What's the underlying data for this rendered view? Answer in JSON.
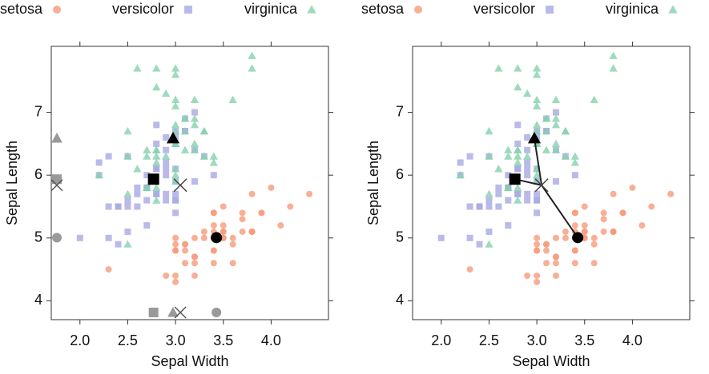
{
  "chart_data": [
    {
      "type": "scatter",
      "x_label": "Sepal Width",
      "y_label": "Sepal Length",
      "xlim": [
        1.7,
        4.6
      ],
      "ylim": [
        3.7,
        8.05
      ],
      "xticks": [
        {
          "value": 2.0,
          "label": "2.0"
        },
        {
          "value": 2.5,
          "label": "2.5"
        },
        {
          "value": 3.0,
          "label": "3.0"
        },
        {
          "value": 3.5,
          "label": "3.5"
        },
        {
          "value": 4.0,
          "label": "4.0"
        }
      ],
      "yticks": [
        4,
        5,
        6,
        7
      ],
      "marginal_projections": true,
      "connections": false,
      "query": [
        3.05,
        5.84
      ],
      "series": [
        {
          "name": "setosa",
          "color": "#f59b7c",
          "marker": "circle",
          "centroid": [
            3.428,
            5.006
          ],
          "x": [
            3.5,
            3.0,
            3.2,
            3.1,
            3.6,
            3.9,
            3.4,
            3.4,
            2.9,
            3.1,
            3.7,
            3.4,
            3.0,
            3.0,
            4.0,
            4.4,
            3.9,
            3.5,
            3.8,
            3.8,
            3.4,
            3.7,
            3.6,
            3.3,
            3.4,
            3.0,
            3.4,
            3.5,
            3.4,
            3.2,
            3.1,
            3.4,
            4.1,
            4.2,
            3.1,
            3.2,
            3.5,
            3.6,
            3.0,
            3.4,
            3.5,
            2.3,
            3.2,
            3.5,
            3.8,
            3.0,
            3.8,
            3.2,
            3.7,
            3.3
          ],
          "values": [
            5.1,
            4.9,
            4.7,
            4.6,
            5.0,
            5.4,
            4.6,
            5.0,
            4.4,
            4.9,
            5.4,
            4.8,
            4.8,
            4.3,
            5.8,
            5.7,
            5.4,
            5.1,
            5.7,
            5.1,
            5.4,
            5.1,
            4.6,
            5.1,
            4.8,
            5.0,
            5.0,
            5.2,
            5.2,
            4.7,
            4.8,
            5.4,
            5.2,
            5.5,
            4.9,
            5.0,
            5.5,
            4.9,
            4.4,
            5.1,
            5.0,
            4.5,
            4.4,
            5.0,
            5.1,
            4.8,
            5.1,
            4.6,
            5.3,
            5.0
          ]
        },
        {
          "name": "versicolor",
          "color": "#a9a9e3",
          "marker": "square",
          "centroid": [
            2.77,
            5.936
          ],
          "x": [
            3.2,
            3.2,
            3.1,
            2.3,
            2.8,
            2.8,
            3.3,
            2.4,
            2.9,
            2.7,
            2.0,
            3.0,
            2.2,
            2.9,
            2.9,
            3.1,
            3.0,
            2.7,
            2.2,
            2.5,
            3.2,
            2.8,
            2.5,
            2.8,
            2.9,
            3.0,
            2.8,
            3.0,
            2.9,
            2.6,
            2.4,
            2.4,
            2.7,
            2.7,
            3.0,
            3.4,
            3.1,
            2.3,
            3.0,
            2.5,
            2.6,
            3.0,
            2.6,
            2.3,
            2.7,
            3.0,
            2.9,
            2.9,
            2.5,
            2.8
          ],
          "values": [
            7.0,
            6.4,
            6.9,
            5.5,
            6.5,
            5.7,
            6.3,
            4.9,
            6.6,
            5.2,
            5.0,
            5.9,
            6.0,
            6.1,
            5.6,
            6.7,
            5.6,
            5.8,
            6.2,
            5.6,
            5.9,
            6.1,
            6.3,
            6.1,
            6.4,
            6.6,
            6.8,
            6.7,
            6.0,
            5.7,
            5.5,
            5.5,
            5.8,
            6.0,
            5.4,
            6.0,
            6.7,
            6.3,
            5.6,
            5.5,
            5.5,
            6.1,
            5.8,
            5.0,
            5.6,
            5.7,
            5.7,
            6.2,
            5.1,
            5.7
          ]
        },
        {
          "name": "virginica",
          "color": "#86d1ae",
          "marker": "triangle",
          "centroid": [
            2.974,
            6.588
          ],
          "x": [
            3.3,
            2.7,
            3.0,
            2.9,
            3.0,
            3.0,
            2.5,
            2.9,
            2.5,
            3.6,
            3.2,
            2.7,
            3.0,
            2.5,
            2.8,
            3.2,
            3.0,
            3.8,
            2.6,
            2.2,
            3.2,
            2.8,
            2.8,
            2.7,
            3.3,
            3.2,
            2.8,
            3.0,
            2.8,
            3.0,
            2.8,
            3.8,
            2.8,
            2.8,
            2.6,
            3.0,
            3.4,
            3.1,
            3.0,
            3.1,
            3.1,
            3.1,
            2.7,
            3.2,
            3.3,
            3.0,
            2.5,
            3.0,
            3.4,
            3.0
          ],
          "values": [
            6.3,
            5.8,
            7.1,
            6.3,
            6.5,
            7.6,
            4.9,
            7.3,
            6.7,
            7.2,
            6.5,
            6.4,
            6.8,
            5.7,
            5.8,
            6.4,
            6.5,
            7.7,
            7.7,
            6.0,
            6.9,
            5.6,
            7.7,
            6.3,
            6.7,
            7.2,
            6.2,
            6.1,
            6.4,
            7.2,
            7.4,
            7.9,
            6.4,
            6.3,
            6.1,
            7.7,
            6.3,
            6.4,
            6.0,
            6.9,
            6.7,
            6.9,
            5.8,
            6.8,
            6.7,
            6.7,
            6.3,
            6.5,
            6.2,
            5.9
          ]
        }
      ]
    },
    {
      "type": "scatter",
      "x_label": "Sepal Width",
      "y_label": "Sepal Length",
      "xlim": [
        1.7,
        4.6
      ],
      "ylim": [
        3.7,
        8.05
      ],
      "xticks": [
        {
          "value": 2.0,
          "label": "2.0"
        },
        {
          "value": 2.5,
          "label": "2.5"
        },
        {
          "value": 3.0,
          "label": "3.0"
        },
        {
          "value": 3.5,
          "label": "3.5"
        },
        {
          "value": 4.0,
          "label": "4.0"
        }
      ],
      "yticks": [
        4,
        5,
        6,
        7
      ],
      "marginal_projections": false,
      "connections": true,
      "query": [
        3.05,
        5.84
      ],
      "series": [
        {
          "name": "setosa",
          "color": "#f59b7c",
          "marker": "circle",
          "centroid": [
            3.428,
            5.006
          ],
          "x": [
            3.5,
            3.0,
            3.2,
            3.1,
            3.6,
            3.9,
            3.4,
            3.4,
            2.9,
            3.1,
            3.7,
            3.4,
            3.0,
            3.0,
            4.0,
            4.4,
            3.9,
            3.5,
            3.8,
            3.8,
            3.4,
            3.7,
            3.6,
            3.3,
            3.4,
            3.0,
            3.4,
            3.5,
            3.4,
            3.2,
            3.1,
            3.4,
            4.1,
            4.2,
            3.1,
            3.2,
            3.5,
            3.6,
            3.0,
            3.4,
            3.5,
            2.3,
            3.2,
            3.5,
            3.8,
            3.0,
            3.8,
            3.2,
            3.7,
            3.3
          ],
          "values": [
            5.1,
            4.9,
            4.7,
            4.6,
            5.0,
            5.4,
            4.6,
            5.0,
            4.4,
            4.9,
            5.4,
            4.8,
            4.8,
            4.3,
            5.8,
            5.7,
            5.4,
            5.1,
            5.7,
            5.1,
            5.4,
            5.1,
            4.6,
            5.1,
            4.8,
            5.0,
            5.0,
            5.2,
            5.2,
            4.7,
            4.8,
            5.4,
            5.2,
            5.5,
            4.9,
            5.0,
            5.5,
            4.9,
            4.4,
            5.1,
            5.0,
            4.5,
            4.4,
            5.0,
            5.1,
            4.8,
            5.1,
            4.6,
            5.3,
            5.0
          ]
        },
        {
          "name": "versicolor",
          "color": "#a9a9e3",
          "marker": "square",
          "centroid": [
            2.77,
            5.936
          ],
          "x": [
            3.2,
            3.2,
            3.1,
            2.3,
            2.8,
            2.8,
            3.3,
            2.4,
            2.9,
            2.7,
            2.0,
            3.0,
            2.2,
            2.9,
            2.9,
            3.1,
            3.0,
            2.7,
            2.2,
            2.5,
            3.2,
            2.8,
            2.5,
            2.8,
            2.9,
            3.0,
            2.8,
            3.0,
            2.9,
            2.6,
            2.4,
            2.4,
            2.7,
            2.7,
            3.0,
            3.4,
            3.1,
            2.3,
            3.0,
            2.5,
            2.6,
            3.0,
            2.6,
            2.3,
            2.7,
            3.0,
            2.9,
            2.9,
            2.5,
            2.8
          ],
          "values": [
            7.0,
            6.4,
            6.9,
            5.5,
            6.5,
            5.7,
            6.3,
            4.9,
            6.6,
            5.2,
            5.0,
            5.9,
            6.0,
            6.1,
            5.6,
            6.7,
            5.6,
            5.8,
            6.2,
            5.6,
            5.9,
            6.1,
            6.3,
            6.1,
            6.4,
            6.6,
            6.8,
            6.7,
            6.0,
            5.7,
            5.5,
            5.5,
            5.8,
            6.0,
            5.4,
            6.0,
            6.7,
            6.3,
            5.6,
            5.5,
            5.5,
            6.1,
            5.8,
            5.0,
            5.6,
            5.7,
            5.7,
            6.2,
            5.1,
            5.7
          ]
        },
        {
          "name": "virginica",
          "color": "#86d1ae",
          "marker": "triangle",
          "centroid": [
            2.974,
            6.588
          ],
          "x": [
            3.3,
            2.7,
            3.0,
            2.9,
            3.0,
            3.0,
            2.5,
            2.9,
            2.5,
            3.6,
            3.2,
            2.7,
            3.0,
            2.5,
            2.8,
            3.2,
            3.0,
            3.8,
            2.6,
            2.2,
            3.2,
            2.8,
            2.8,
            2.7,
            3.3,
            3.2,
            2.8,
            3.0,
            2.8,
            3.0,
            2.8,
            3.8,
            2.8,
            2.8,
            2.6,
            3.0,
            3.4,
            3.1,
            3.0,
            3.1,
            3.1,
            3.1,
            2.7,
            3.2,
            3.3,
            3.0,
            2.5,
            3.0,
            3.4,
            3.0
          ],
          "values": [
            6.3,
            5.8,
            7.1,
            6.3,
            6.5,
            7.6,
            4.9,
            7.3,
            6.7,
            7.2,
            6.5,
            6.4,
            6.8,
            5.7,
            5.8,
            6.4,
            6.5,
            7.7,
            7.7,
            6.0,
            6.9,
            5.6,
            7.7,
            6.3,
            6.7,
            7.2,
            6.2,
            6.1,
            6.4,
            7.2,
            7.4,
            7.9,
            6.4,
            6.3,
            6.1,
            7.7,
            6.3,
            6.4,
            6.0,
            6.9,
            6.7,
            6.9,
            5.8,
            6.8,
            6.7,
            6.7,
            6.3,
            6.5,
            6.2,
            5.9
          ]
        }
      ]
    }
  ]
}
